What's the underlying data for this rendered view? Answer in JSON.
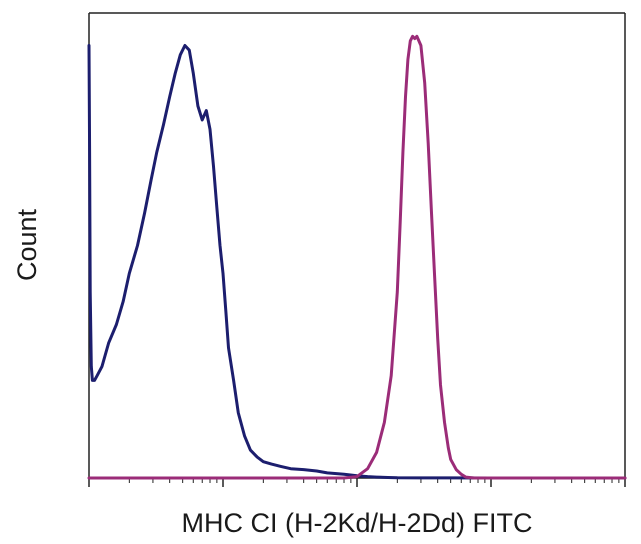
{
  "chart_data": {
    "type": "line",
    "chart_subtype": "flow-cytometry-histogram",
    "title": "",
    "xlabel": "MHC CI (H-2Kd/H-2Dd) FITC",
    "ylabel": "Count",
    "x_scale": "log",
    "xlim": [
      0.1,
      1000
    ],
    "ylim": [
      0,
      100
    ],
    "x_tick_labels": [],
    "y_tick_labels": [],
    "grid": false,
    "legend": "none",
    "series": [
      {
        "color": "#1c1e6e",
        "x": [
          0.1,
          0.101,
          0.102,
          0.104,
          0.106,
          0.11,
          0.115,
          0.125,
          0.14,
          0.16,
          0.18,
          0.2,
          0.23,
          0.26,
          0.29,
          0.32,
          0.36,
          0.4,
          0.44,
          0.48,
          0.52,
          0.56,
          0.6,
          0.65,
          0.7,
          0.75,
          0.8,
          0.85,
          0.9,
          0.95,
          1.0,
          1.05,
          1.1,
          1.2,
          1.3,
          1.45,
          1.6,
          1.8,
          2.0,
          2.3,
          2.7,
          3.2,
          4,
          5,
          6,
          8,
          10,
          12,
          14,
          17,
          20,
          30,
          50,
          100,
          1000
        ],
        "y": [
          93,
          70,
          40,
          24,
          21,
          21,
          22,
          24,
          29,
          33,
          38,
          44,
          50,
          57,
          64,
          70,
          76,
          82,
          87,
          91,
          93,
          92,
          87,
          80,
          77,
          79,
          75,
          67,
          58,
          50,
          44,
          36,
          28,
          21,
          14,
          9,
          6,
          4.5,
          3.5,
          3,
          2.5,
          2,
          1.8,
          1.5,
          1.1,
          0.8,
          0.5,
          0.3,
          0.2,
          0.1,
          0.05,
          0.03,
          0.02,
          0,
          0
        ]
      },
      {
        "color": "#9b2c78",
        "x": [
          0.1,
          1,
          5,
          8,
          10,
          12,
          14,
          16,
          18,
          20,
          21,
          22,
          23,
          24,
          25,
          26,
          27,
          28,
          30,
          32,
          34,
          36,
          38,
          40,
          42,
          45,
          48,
          50,
          55,
          60,
          65,
          75,
          100,
          1000
        ],
        "y": [
          0,
          0,
          0,
          0,
          0.3,
          2,
          5.5,
          12,
          22,
          40,
          55,
          70,
          82,
          90,
          94,
          95,
          94.5,
          95,
          93,
          85,
          72,
          57,
          43,
          30,
          20,
          12,
          6.5,
          4,
          1.8,
          0.8,
          0.2,
          0,
          0,
          0
        ]
      }
    ]
  }
}
